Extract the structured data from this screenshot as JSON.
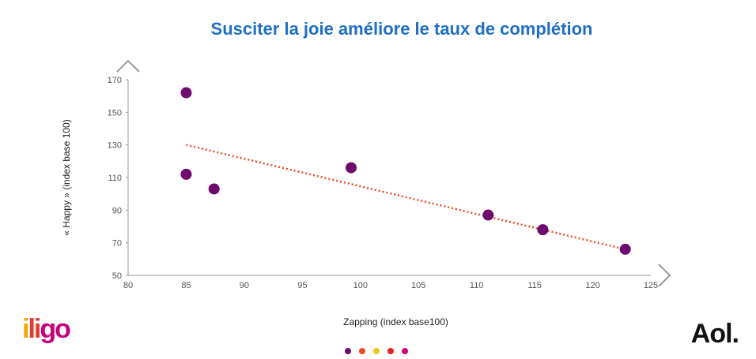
{
  "chart_data": {
    "type": "scatter",
    "title": "Susciter la joie améliore le taux de complétion",
    "xlabel": "Zapping (index base100)",
    "ylabel": "« Happy » (index base 100)",
    "xlim": [
      80,
      125
    ],
    "ylim": [
      50,
      170
    ],
    "xticks": [
      80,
      85,
      90,
      95,
      100,
      105,
      110,
      115,
      120,
      125
    ],
    "yticks": [
      50,
      70,
      90,
      110,
      130,
      150,
      170
    ],
    "points": [
      {
        "x": 85,
        "y": 162
      },
      {
        "x": 85,
        "y": 112
      },
      {
        "x": 87.4,
        "y": 103
      },
      {
        "x": 99.2,
        "y": 116
      },
      {
        "x": 111,
        "y": 87
      },
      {
        "x": 115.7,
        "y": 78
      },
      {
        "x": 122.8,
        "y": 66
      }
    ],
    "trendline": {
      "type": "linear",
      "start": {
        "x": 85,
        "y": 130
      },
      "end": {
        "x": 122.8,
        "y": 66
      }
    },
    "grid": false,
    "colors": {
      "points": "#6f0a6f",
      "trendline": "#f04a23",
      "axes": "#999999"
    }
  },
  "logos": {
    "left": {
      "text": "iligo",
      "colors": [
        "#f2a600",
        "#e63b2e",
        "#c4007a"
      ]
    },
    "right": {
      "text": "Aol."
    }
  },
  "page_dots": [
    "#6f0a6f",
    "#f04a23",
    "#f5c518",
    "#e52020",
    "#d4007a"
  ]
}
